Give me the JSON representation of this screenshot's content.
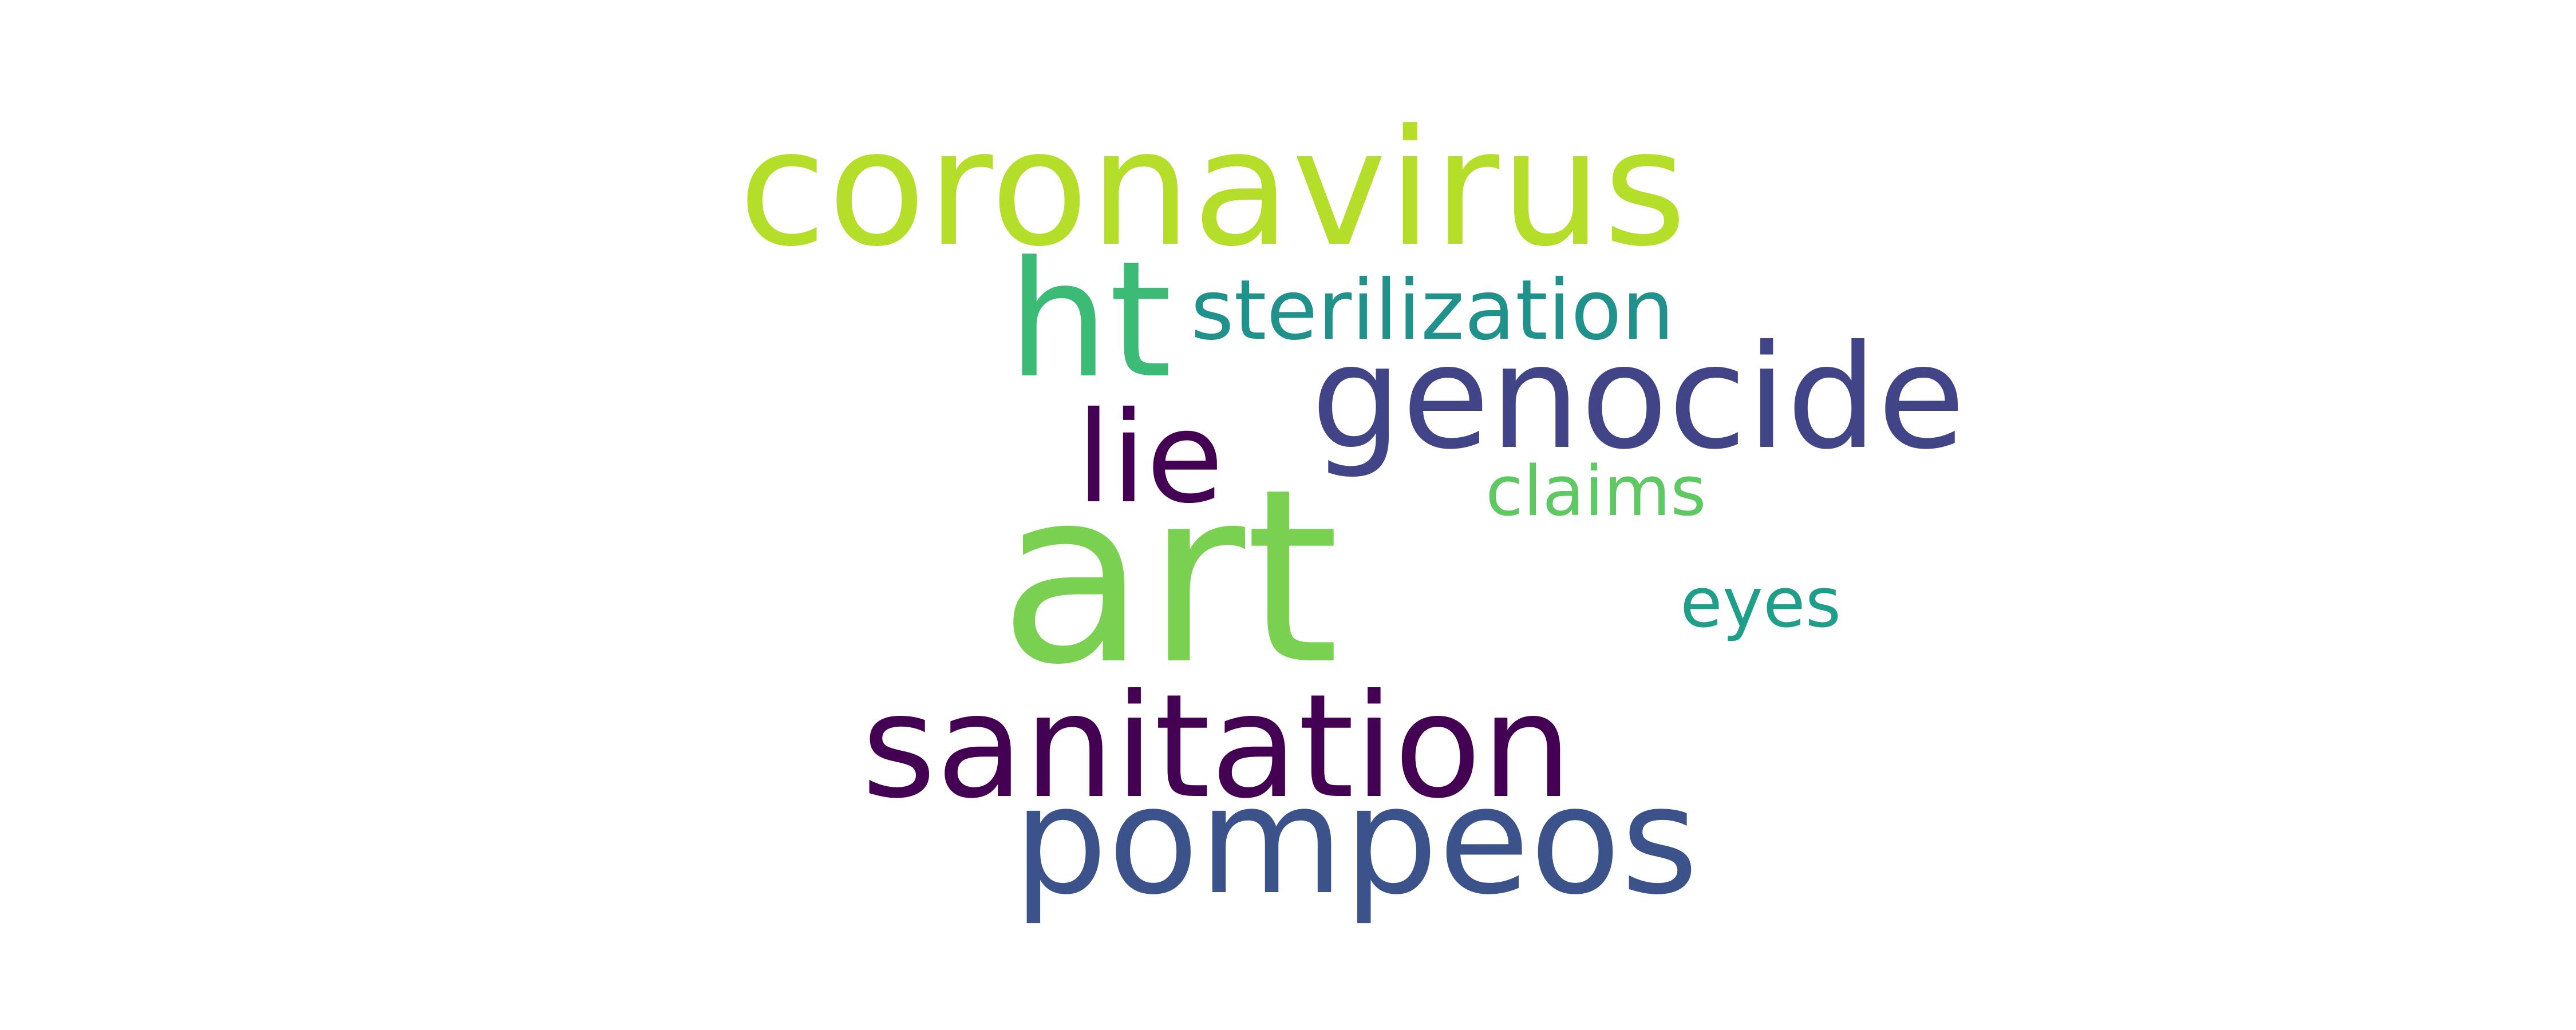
{
  "words": [
    {
      "text": "coronavirus",
      "color": "#b5de2b"
    },
    {
      "text": "ht",
      "color": "#3bbb75"
    },
    {
      "text": "sterilization",
      "color": "#21918c"
    },
    {
      "text": "genocide",
      "color": "#414487"
    },
    {
      "text": "lie",
      "color": "#440154"
    },
    {
      "text": "claims",
      "color": "#5ec962"
    },
    {
      "text": "art",
      "color": "#7ad151"
    },
    {
      "text": "eyes",
      "color": "#1f9e89"
    },
    {
      "text": "sanitation",
      "color": "#440154"
    },
    {
      "text": "pompeos",
      "color": "#3b528b"
    }
  ]
}
